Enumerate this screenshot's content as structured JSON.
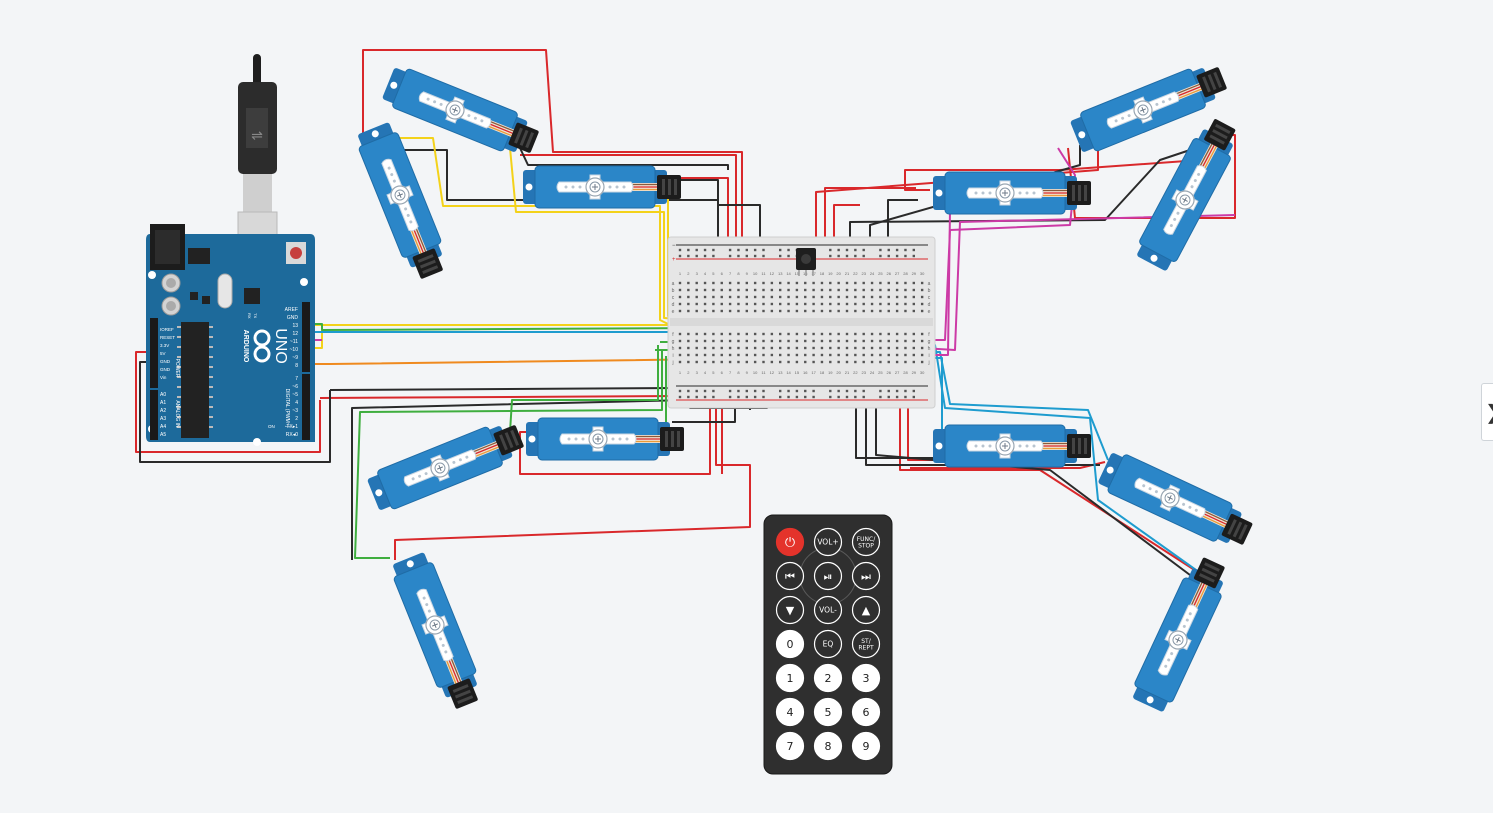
{
  "arduino": {
    "brand": "ARDUINO",
    "model": "UNO",
    "power_label": "POWER",
    "analog_label": "ANALOG IN",
    "digital_label": "DIGITAL (PWM~)",
    "on_label": "ON",
    "tx_label": "TX",
    "rx_label": "RX",
    "power_pins": [
      "IOREF",
      "RESET",
      "3.3V",
      "5V",
      "GND",
      "GND",
      "Vin"
    ],
    "analog_pins": [
      "A0",
      "A1",
      "A2",
      "A3",
      "A4",
      "A5"
    ],
    "digital_top": [
      "AREF",
      "GND",
      "13",
      "12",
      "~11",
      "~10",
      "~9",
      "8"
    ],
    "digital_bottom": [
      "7",
      "~6",
      "~5",
      "4",
      "~3",
      "2",
      "TX▸1",
      "RX◂0"
    ]
  },
  "breadboard": {
    "columns": [
      "1",
      "2",
      "3",
      "4",
      "5",
      "6",
      "7",
      "8",
      "9",
      "10",
      "11",
      "12",
      "13",
      "14",
      "15",
      "16",
      "17",
      "18",
      "19",
      "20",
      "21",
      "22",
      "23",
      "24",
      "25",
      "26",
      "27",
      "28",
      "29",
      "30"
    ],
    "rows_top": [
      "a",
      "b",
      "c",
      "d",
      "e"
    ],
    "rows_bottom": [
      "f",
      "g",
      "h",
      "i",
      "j"
    ]
  },
  "remote": {
    "buttons": [
      {
        "label": "⏻",
        "name": "power-button",
        "kind": "power"
      },
      {
        "label": "VOL+",
        "name": "vol-up-button",
        "kind": "small"
      },
      {
        "label": "FUNC/\nSTOP",
        "name": "func-stop-button",
        "kind": "tiny"
      },
      {
        "label": "⏮",
        "name": "prev-button",
        "kind": "icon"
      },
      {
        "label": "⏯",
        "name": "play-pause-button",
        "kind": "icon"
      },
      {
        "label": "⏭",
        "name": "next-button",
        "kind": "icon"
      },
      {
        "label": "▼",
        "name": "down-button",
        "kind": "icon"
      },
      {
        "label": "VOL-",
        "name": "vol-down-button",
        "kind": "small"
      },
      {
        "label": "▲",
        "name": "up-button",
        "kind": "icon"
      },
      {
        "label": "0",
        "name": "digit-0-button",
        "kind": "digit"
      },
      {
        "label": "EQ",
        "name": "eq-button",
        "kind": "small"
      },
      {
        "label": "ST/\nREPT",
        "name": "st-rept-button",
        "kind": "tiny"
      },
      {
        "label": "1",
        "name": "digit-1-button",
        "kind": "digit"
      },
      {
        "label": "2",
        "name": "digit-2-button",
        "kind": "digit"
      },
      {
        "label": "3",
        "name": "digit-3-button",
        "kind": "digit"
      },
      {
        "label": "4",
        "name": "digit-4-button",
        "kind": "digit"
      },
      {
        "label": "5",
        "name": "digit-5-button",
        "kind": "digit"
      },
      {
        "label": "6",
        "name": "digit-6-button",
        "kind": "digit"
      },
      {
        "label": "7",
        "name": "digit-7-button",
        "kind": "digit"
      },
      {
        "label": "8",
        "name": "digit-8-button",
        "kind": "digit"
      },
      {
        "label": "9",
        "name": "digit-9-button",
        "kind": "digit"
      }
    ]
  },
  "servo_count": 12,
  "side_tab": {
    "label": "❯"
  },
  "colors": {
    "background": "#f3f5f7",
    "arduino_board": "#1d6a9b",
    "servo_body": "#2b86c8",
    "wire_red": "#d9282b",
    "wire_black": "#2a2a2a",
    "wire_yellow": "#f3d21a",
    "wire_green": "#3fae3f",
    "wire_orange": "#ef8a1f",
    "wire_magenta": "#cc3aa6",
    "wire_cyan": "#1e9ccf",
    "remote_body": "#2f2f2f",
    "remote_power": "#e4332b"
  }
}
